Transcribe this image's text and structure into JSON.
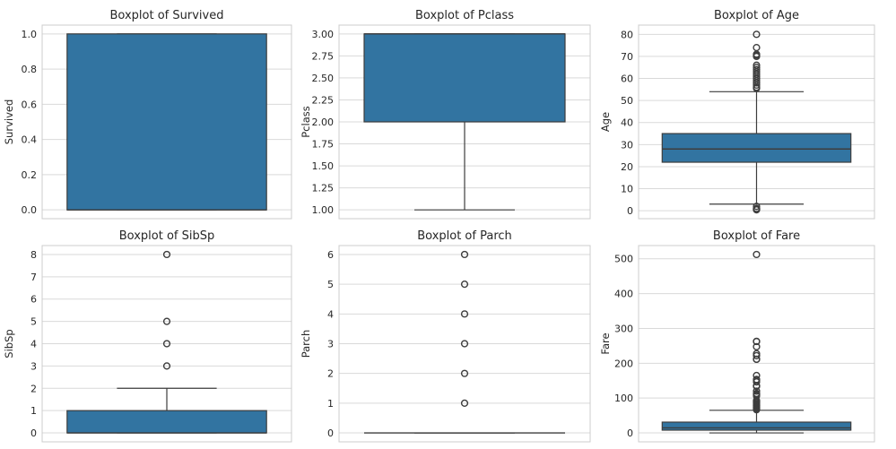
{
  "colors": {
    "box": "#3274a1",
    "line": "#3d3d3d",
    "grid": "#d9d9d9",
    "frame": "#cccccc",
    "text": "#262626"
  },
  "chart_data": [
    {
      "type": "box",
      "title": "Boxplot of Survived",
      "ylabel": "Survived",
      "ylim": [
        -0.05,
        1.05
      ],
      "yticks": [
        "0.0",
        "0.2",
        "0.4",
        "0.6",
        "0.8",
        "1.0"
      ],
      "box": {
        "q1": 0,
        "median": 0,
        "q3": 1,
        "whisker_low": 0,
        "whisker_high": 1
      },
      "outliers": [],
      "grid": true
    },
    {
      "type": "box",
      "title": "Boxplot of Pclass",
      "ylabel": "Pclass",
      "ylim": [
        0.9,
        3.1
      ],
      "yticks": [
        "1.00",
        "1.25",
        "1.50",
        "1.75",
        "2.00",
        "2.25",
        "2.50",
        "2.75",
        "3.00"
      ],
      "box": {
        "q1": 2,
        "median": 3,
        "q3": 3,
        "whisker_low": 1,
        "whisker_high": 3
      },
      "outliers": [],
      "grid": true
    },
    {
      "type": "box",
      "title": "Boxplot of Age",
      "ylabel": "Age",
      "ylim": [
        -3.6,
        84.2
      ],
      "yticks": [
        "0",
        "10",
        "20",
        "30",
        "40",
        "50",
        "60",
        "70",
        "80"
      ],
      "box": {
        "q1": 22,
        "median": 28,
        "q3": 35,
        "whisker_low": 3,
        "whisker_high": 54
      },
      "outliers": [
        0.42,
        0.67,
        0.75,
        0.83,
        0.92,
        1,
        2,
        55.5,
        56,
        57,
        58,
        59,
        60,
        61,
        62,
        63,
        64,
        65,
        66,
        70,
        70.5,
        71,
        74,
        80
      ],
      "grid": true
    },
    {
      "type": "box",
      "title": "Boxplot of SibSp",
      "ylabel": "SibSp",
      "ylim": [
        -0.4,
        8.4
      ],
      "yticks": [
        "0",
        "1",
        "2",
        "3",
        "4",
        "5",
        "6",
        "7",
        "8"
      ],
      "box": {
        "q1": 0,
        "median": 0,
        "q3": 1,
        "whisker_low": 0,
        "whisker_high": 2
      },
      "outliers": [
        3,
        4,
        5,
        8
      ],
      "grid": true
    },
    {
      "type": "box",
      "title": "Boxplot of Parch",
      "ylabel": "Parch",
      "ylim": [
        -0.3,
        6.3
      ],
      "yticks": [
        "0",
        "1",
        "2",
        "3",
        "4",
        "5",
        "6"
      ],
      "box": {
        "q1": 0,
        "median": 0,
        "q3": 0,
        "whisker_low": 0,
        "whisker_high": 0
      },
      "outliers": [
        1,
        2,
        3,
        4,
        5,
        6
      ],
      "grid": true
    },
    {
      "type": "box",
      "title": "Boxplot of Fare",
      "ylabel": "Fare",
      "ylim": [
        -25.6,
        537.9
      ],
      "yticks": [
        "0",
        "100",
        "200",
        "300",
        "400",
        "500"
      ],
      "box": {
        "q1": 7.91,
        "median": 14.45,
        "q3": 31,
        "whisker_low": 0,
        "whisker_high": 65
      },
      "outliers": [
        66.6,
        69.55,
        71.28,
        73.5,
        76.73,
        77.96,
        79.2,
        81.86,
        83.16,
        86.5,
        89.1,
        90,
        91.08,
        93.5,
        106.43,
        108.9,
        110.88,
        113.28,
        120,
        133.65,
        134.5,
        135.63,
        146.52,
        151.55,
        153.46,
        164.87,
        211.34,
        211.5,
        221.78,
        227.53,
        247.52,
        262.38,
        263,
        512.33
      ],
      "grid": true
    }
  ]
}
